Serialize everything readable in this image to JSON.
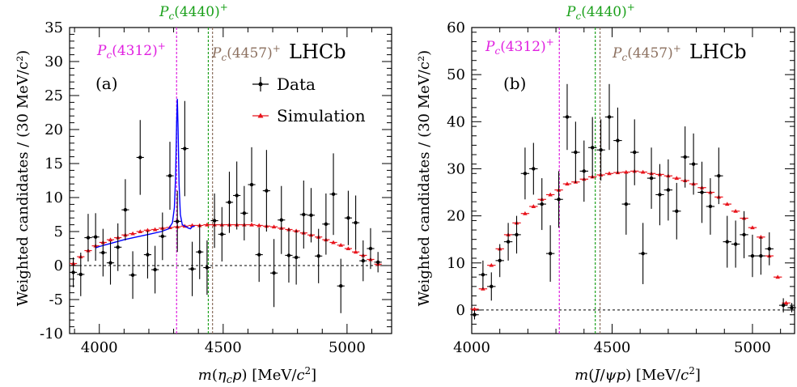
{
  "figure": {
    "experiment_label": "LHCb",
    "legend": {
      "data": "Data",
      "simulation": "Simulation",
      "placement": "top-right of panel (a)"
    },
    "colors": {
      "data": "#000000",
      "simulation": "#e8141c",
      "model": "#0000ff",
      "pc4312": "#e020e0",
      "pc4440": "#1aa01a",
      "pc4457": "#8b6f5e",
      "zero_line": "#000000"
    }
  },
  "chart_data": [
    {
      "type": "scatter",
      "panel_label": "(a)",
      "xlabel": "m(ηcp) [MeV/c²]",
      "ylabel": "Weighted candidates / (30 MeV/c²)",
      "xlim": [
        3880,
        5180
      ],
      "ylim": [
        -10,
        35
      ],
      "xticks": [
        4000,
        4500,
        5000
      ],
      "yticks": [
        -10,
        -5,
        0,
        5,
        10,
        15,
        20,
        25,
        30,
        35
      ],
      "zero_line": true,
      "resonance_lines": [
        {
          "label": "Pc(4312)+",
          "mass": 4312,
          "color": "pc4312"
        },
        {
          "label": "Pc(4440)+",
          "mass": 4440,
          "color": "pc4440"
        },
        {
          "label": "Pc(4457)+",
          "mass": 4457,
          "color": "pc4457"
        }
      ],
      "data_points": [
        [
          3895,
          -1.0,
          2.2
        ],
        [
          3925,
          -1.3,
          3.2
        ],
        [
          3955,
          4.1,
          3.5
        ],
        [
          3985,
          4.2,
          3.5
        ],
        [
          4015,
          1.9,
          3.5
        ],
        [
          4045,
          0.4,
          3.2
        ],
        [
          4075,
          2.7,
          3.5
        ],
        [
          4105,
          8.2,
          4.5
        ],
        [
          4135,
          -1.4,
          3.5
        ],
        [
          4165,
          15.9,
          5.5
        ],
        [
          4195,
          1.6,
          3.5
        ],
        [
          4225,
          -0.6,
          3.5
        ],
        [
          4255,
          4.3,
          3.5
        ],
        [
          4285,
          13.2,
          5.0
        ],
        [
          4315,
          6.5,
          4.5
        ],
        [
          4345,
          17.2,
          7.0
        ],
        [
          4375,
          -0.5,
          4.0
        ],
        [
          4405,
          2.0,
          4.0
        ],
        [
          4435,
          -0.3,
          4.0
        ],
        [
          4465,
          6.6,
          4.0
        ],
        [
          4495,
          4.6,
          4.0
        ],
        [
          4525,
          9.3,
          4.5
        ],
        [
          4555,
          10.3,
          5.0
        ],
        [
          4585,
          7.7,
          4.0
        ],
        [
          4615,
          11.9,
          5.5
        ],
        [
          4645,
          1.6,
          4.0
        ],
        [
          4675,
          11.0,
          6.0
        ],
        [
          4705,
          -1.1,
          5.0
        ],
        [
          4735,
          6.7,
          5.0
        ],
        [
          4765,
          1.5,
          4.0
        ],
        [
          4795,
          1.2,
          4.0
        ],
        [
          4825,
          7.5,
          5.0
        ],
        [
          4855,
          7.4,
          4.0
        ],
        [
          4885,
          1.4,
          4.0
        ],
        [
          4915,
          6.1,
          4.5
        ],
        [
          4945,
          10.5,
          6.0
        ],
        [
          4975,
          -3.0,
          4.0
        ],
        [
          5005,
          7.0,
          4.0
        ],
        [
          5035,
          6.3,
          4.0
        ],
        [
          5065,
          0.7,
          3.0
        ],
        [
          5095,
          2.5,
          3.0
        ],
        [
          5125,
          0.5,
          1.5
        ]
      ],
      "simulation_points": [
        [
          3895,
          0.3
        ],
        [
          3925,
          1.3
        ],
        [
          3955,
          2.2
        ],
        [
          3985,
          2.9
        ],
        [
          4015,
          3.4
        ],
        [
          4045,
          3.8
        ],
        [
          4075,
          4.1
        ],
        [
          4105,
          4.5
        ],
        [
          4135,
          4.7
        ],
        [
          4165,
          5.0
        ],
        [
          4195,
          5.2
        ],
        [
          4225,
          5.3
        ],
        [
          4255,
          5.5
        ],
        [
          4285,
          5.6
        ],
        [
          4315,
          5.7
        ],
        [
          4345,
          5.8
        ],
        [
          4375,
          5.9
        ],
        [
          4405,
          5.9
        ],
        [
          4435,
          6.0
        ],
        [
          4465,
          6.0
        ],
        [
          4495,
          6.0
        ],
        [
          4525,
          6.0
        ],
        [
          4555,
          6.0
        ],
        [
          4585,
          6.0
        ],
        [
          4615,
          6.0
        ],
        [
          4645,
          5.9
        ],
        [
          4675,
          5.8
        ],
        [
          4705,
          5.7
        ],
        [
          4735,
          5.5
        ],
        [
          4765,
          5.3
        ],
        [
          4795,
          5.1
        ],
        [
          4825,
          4.8
        ],
        [
          4855,
          4.5
        ],
        [
          4885,
          4.2
        ],
        [
          4915,
          3.8
        ],
        [
          4945,
          3.4
        ],
        [
          4975,
          3.0
        ],
        [
          5005,
          2.5
        ],
        [
          5035,
          2.0
        ],
        [
          5065,
          1.5
        ],
        [
          5095,
          0.9
        ],
        [
          5125,
          0.2
        ]
      ],
      "model_curve": [
        [
          3985,
          2.6
        ],
        [
          4000,
          2.8
        ],
        [
          4050,
          3.3
        ],
        [
          4100,
          3.8
        ],
        [
          4150,
          4.2
        ],
        [
          4200,
          4.6
        ],
        [
          4250,
          5.0
        ],
        [
          4280,
          5.4
        ],
        [
          4295,
          6.3
        ],
        [
          4303,
          8.5
        ],
        [
          4308,
          13.0
        ],
        [
          4312,
          21.0
        ],
        [
          4315,
          24.5
        ],
        [
          4318,
          20.0
        ],
        [
          4322,
          12.0
        ],
        [
          4327,
          7.5
        ],
        [
          4335,
          6.0
        ],
        [
          4345,
          5.8
        ],
        [
          4360,
          5.5
        ],
        [
          4368,
          5.4
        ],
        [
          4375,
          5.7
        ],
        [
          4385,
          5.8
        ]
      ]
    },
    {
      "type": "scatter",
      "panel_label": "(b)",
      "xlabel": "m(J/ψp) [MeV/c²]",
      "ylabel": "Weighted candidates / (30 MeV/c²)",
      "xlim": [
        4000,
        5150
      ],
      "ylim": [
        -5,
        60
      ],
      "xticks": [
        4000,
        4500,
        5000
      ],
      "yticks": [
        0,
        10,
        20,
        30,
        40,
        50,
        60
      ],
      "zero_line": true,
      "resonance_lines": [
        {
          "label": "Pc(4312)+",
          "mass": 4312,
          "color": "pc4312"
        },
        {
          "label": "Pc(4440)+",
          "mass": 4440,
          "color": "pc4440"
        },
        {
          "label": "Pc(4457)+",
          "mass": 4457,
          "color": "pc4457"
        }
      ],
      "data_points": [
        [
          4010,
          -1.0,
          1.0
        ],
        [
          4040,
          7.5,
          3.0
        ],
        [
          4070,
          5.0,
          3.0
        ],
        [
          4100,
          10.5,
          3.5
        ],
        [
          4130,
          14.5,
          4.0
        ],
        [
          4160,
          16.0,
          4.0
        ],
        [
          4190,
          29.0,
          5.5
        ],
        [
          4220,
          30.0,
          5.5
        ],
        [
          4250,
          22.5,
          5.5
        ],
        [
          4280,
          12.0,
          6.0
        ],
        [
          4310,
          23.5,
          6.0
        ],
        [
          4340,
          41.0,
          7.0
        ],
        [
          4370,
          33.5,
          6.5
        ],
        [
          4400,
          29.5,
          6.5
        ],
        [
          4430,
          34.5,
          6.5
        ],
        [
          4460,
          34.0,
          6.5
        ],
        [
          4490,
          41.0,
          7.0
        ],
        [
          4520,
          36.0,
          7.0
        ],
        [
          4550,
          22.5,
          6.5
        ],
        [
          4580,
          33.5,
          7.0
        ],
        [
          4610,
          12.0,
          6.5
        ],
        [
          4640,
          28.0,
          6.5
        ],
        [
          4670,
          24.5,
          6.5
        ],
        [
          4700,
          25.5,
          6.5
        ],
        [
          4730,
          21.0,
          6.0
        ],
        [
          4760,
          32.5,
          6.5
        ],
        [
          4790,
          31.0,
          6.5
        ],
        [
          4820,
          25.0,
          6.5
        ],
        [
          4850,
          22.0,
          6.0
        ],
        [
          4880,
          28.5,
          6.0
        ],
        [
          4910,
          14.5,
          5.5
        ],
        [
          4940,
          14.0,
          5.0
        ],
        [
          4970,
          16.0,
          5.0
        ],
        [
          5000,
          11.5,
          4.5
        ],
        [
          5030,
          11.5,
          4.0
        ],
        [
          5060,
          13.0,
          3.5
        ],
        [
          5110,
          1.0,
          1.5
        ],
        [
          5140,
          0.5,
          1.0
        ]
      ],
      "simulation_points": [
        [
          4010,
          0.2
        ],
        [
          4040,
          4.5
        ],
        [
          4070,
          9.5
        ],
        [
          4100,
          13.0
        ],
        [
          4130,
          16.0
        ],
        [
          4160,
          18.5
        ],
        [
          4190,
          20.5
        ],
        [
          4220,
          22.0
        ],
        [
          4250,
          23.5
        ],
        [
          4280,
          24.5
        ],
        [
          4310,
          25.5
        ],
        [
          4340,
          26.8
        ],
        [
          4370,
          27.2
        ],
        [
          4400,
          27.8
        ],
        [
          4430,
          28.3
        ],
        [
          4460,
          28.7
        ],
        [
          4490,
          29.0
        ],
        [
          4520,
          29.2
        ],
        [
          4550,
          29.3
        ],
        [
          4580,
          29.5
        ],
        [
          4610,
          29.3
        ],
        [
          4640,
          29.0
        ],
        [
          4670,
          28.8
        ],
        [
          4700,
          28.5
        ],
        [
          4730,
          28.0
        ],
        [
          4760,
          27.5
        ],
        [
          4790,
          26.8
        ],
        [
          4820,
          26.0
        ],
        [
          4850,
          25.0
        ],
        [
          4880,
          24.0
        ],
        [
          4910,
          22.5
        ],
        [
          4940,
          21.0
        ],
        [
          4970,
          19.5
        ],
        [
          5000,
          17.5
        ],
        [
          5030,
          15.5
        ],
        [
          5060,
          11.5
        ],
        [
          5090,
          7.0
        ],
        [
          5120,
          1.5
        ]
      ]
    }
  ]
}
